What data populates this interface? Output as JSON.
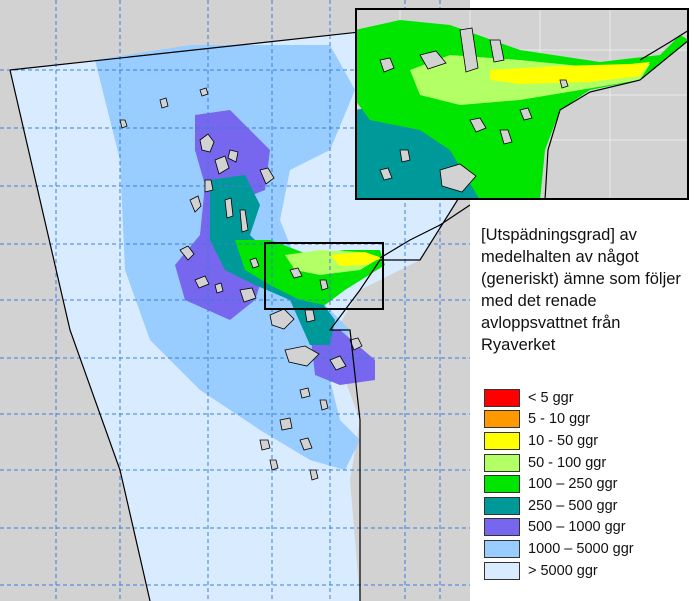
{
  "caption": "[Utspädningsgrad] av medelhalten av något (generiskt) ämne som följer med det renade avloppsvattnet från Ryaverket",
  "legend": [
    {
      "label": "< 5 ggr",
      "color": "#ff0000"
    },
    {
      "label": "5 - 10 ggr",
      "color": "#ff9900"
    },
    {
      "label": "10 - 50 ggr",
      "color": "#ffff00"
    },
    {
      "label": "50 - 100 ggr",
      "color": "#b3ff66"
    },
    {
      "label": "100 – 250 ggr",
      "color": "#00e600"
    },
    {
      "label": "250 – 500 ggr",
      "color": "#009999"
    },
    {
      "label": "500 – 1000 ggr",
      "color": "#7766ee"
    },
    {
      "label": "1000 – 5000 ggr",
      "color": "#99ccff"
    },
    {
      "label": "> 5000 ggr",
      "color": "#d9ecff"
    }
  ],
  "colors": {
    "land": "#d2d2d2",
    "outside": "#ffffff",
    "grid": "#3a7fd9",
    "coast": "#000000"
  }
}
